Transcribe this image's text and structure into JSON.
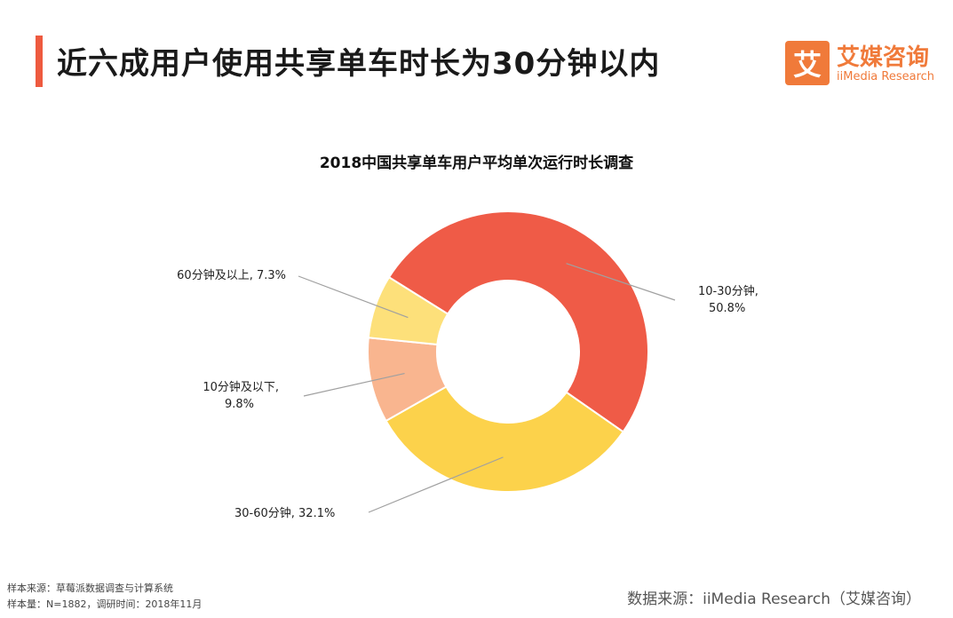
{
  "page": {
    "title": "近六成用户使用共享单车时长为30分钟以内"
  },
  "brand": {
    "logo_glyph": "艾",
    "name_cn": "艾媒咨询",
    "name_en": "iiMedia Research",
    "accent": "#ee5a3f"
  },
  "chart_data": {
    "type": "pie",
    "title": "2018中国共享单车用户平均单次运行时长调查",
    "slices": [
      {
        "label": "10-30分钟",
        "value": 50.8,
        "display_line1": "10-30分钟,",
        "display_line2": "50.8%",
        "color": "#ef5b47"
      },
      {
        "label": "30-60分钟",
        "value": 32.1,
        "display_line1": "30-60分钟, 32.1%",
        "display_line2": "",
        "color": "#fcd24b"
      },
      {
        "label": "10分钟及以下",
        "value": 9.8,
        "display_line1": "10分钟及以下,",
        "display_line2": "9.8%",
        "color": "#f9b58f"
      },
      {
        "label": "60分钟及以上",
        "value": 7.3,
        "display_line1": "60分钟及以上, 7.3%",
        "display_line2": "",
        "color": "#fde07a"
      }
    ]
  },
  "footer": {
    "sample_source": "样本来源：草莓派数据调查与计算系统",
    "sample_size": "样本量：N=1882，调研时间：2018年11月",
    "data_source": "数据来源：iiMedia Research（艾媒咨询）"
  }
}
